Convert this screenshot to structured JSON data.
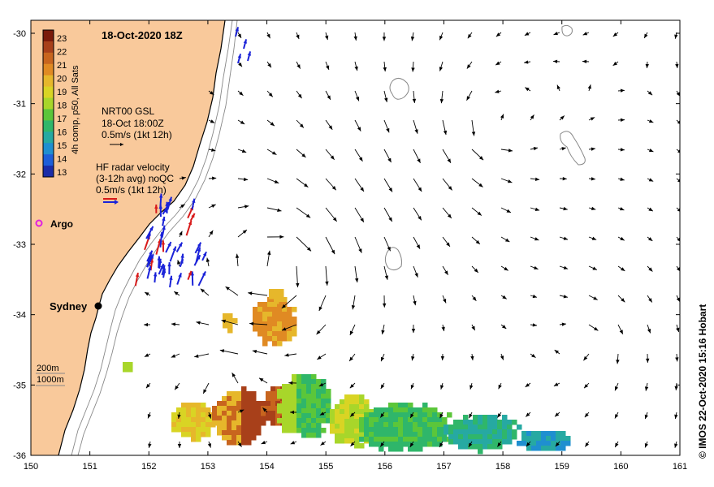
{
  "map": {
    "title": "18-Oct-2020 18Z",
    "colorbar": {
      "label": "4h comp, p50, All Sats",
      "ticks": [
        "23",
        "22",
        "21",
        "20",
        "19",
        "18",
        "17",
        "16",
        "15",
        "14",
        "13"
      ],
      "colors": [
        "#7a1a0a",
        "#a8401a",
        "#c8651e",
        "#e08a23",
        "#e6b72b",
        "#d9d424",
        "#a8d62a",
        "#5bc63a",
        "#2fb66a",
        "#26a9a2",
        "#1f8fd0",
        "#1e5ed8",
        "#1b2ca8"
      ]
    },
    "legend": {
      "gsl_title": "NRT00 GSL",
      "gsl_time": "18-Oct 18:00Z",
      "gsl_scale": "0.5m/s (1kt 12h)",
      "hf_line1": "HF radar velocity",
      "hf_line2": "(3-12h avg) noQC",
      "hf_scale": "0.5m/s (1kt 12h)",
      "argo": "Argo",
      "city": "Sydney",
      "depth1": "200m",
      "depth2": "1000m"
    },
    "x_ticks": [
      "150",
      "151",
      "152",
      "153",
      "154",
      "155",
      "156",
      "157",
      "158",
      "159",
      "160",
      "161"
    ],
    "y_ticks": [
      "-30",
      "-31",
      "-32",
      "-33",
      "-34",
      "-35",
      "-36"
    ],
    "credit": "© IMOS 22-Oct-2020 15:16 Hobart",
    "colors": {
      "land": "#f9c99b",
      "coast": "#000000",
      "arrow": "#000000",
      "hf_blue": "#1a22d8",
      "hf_red": "#d81a1a",
      "argo": "#e020e0"
    }
  }
}
